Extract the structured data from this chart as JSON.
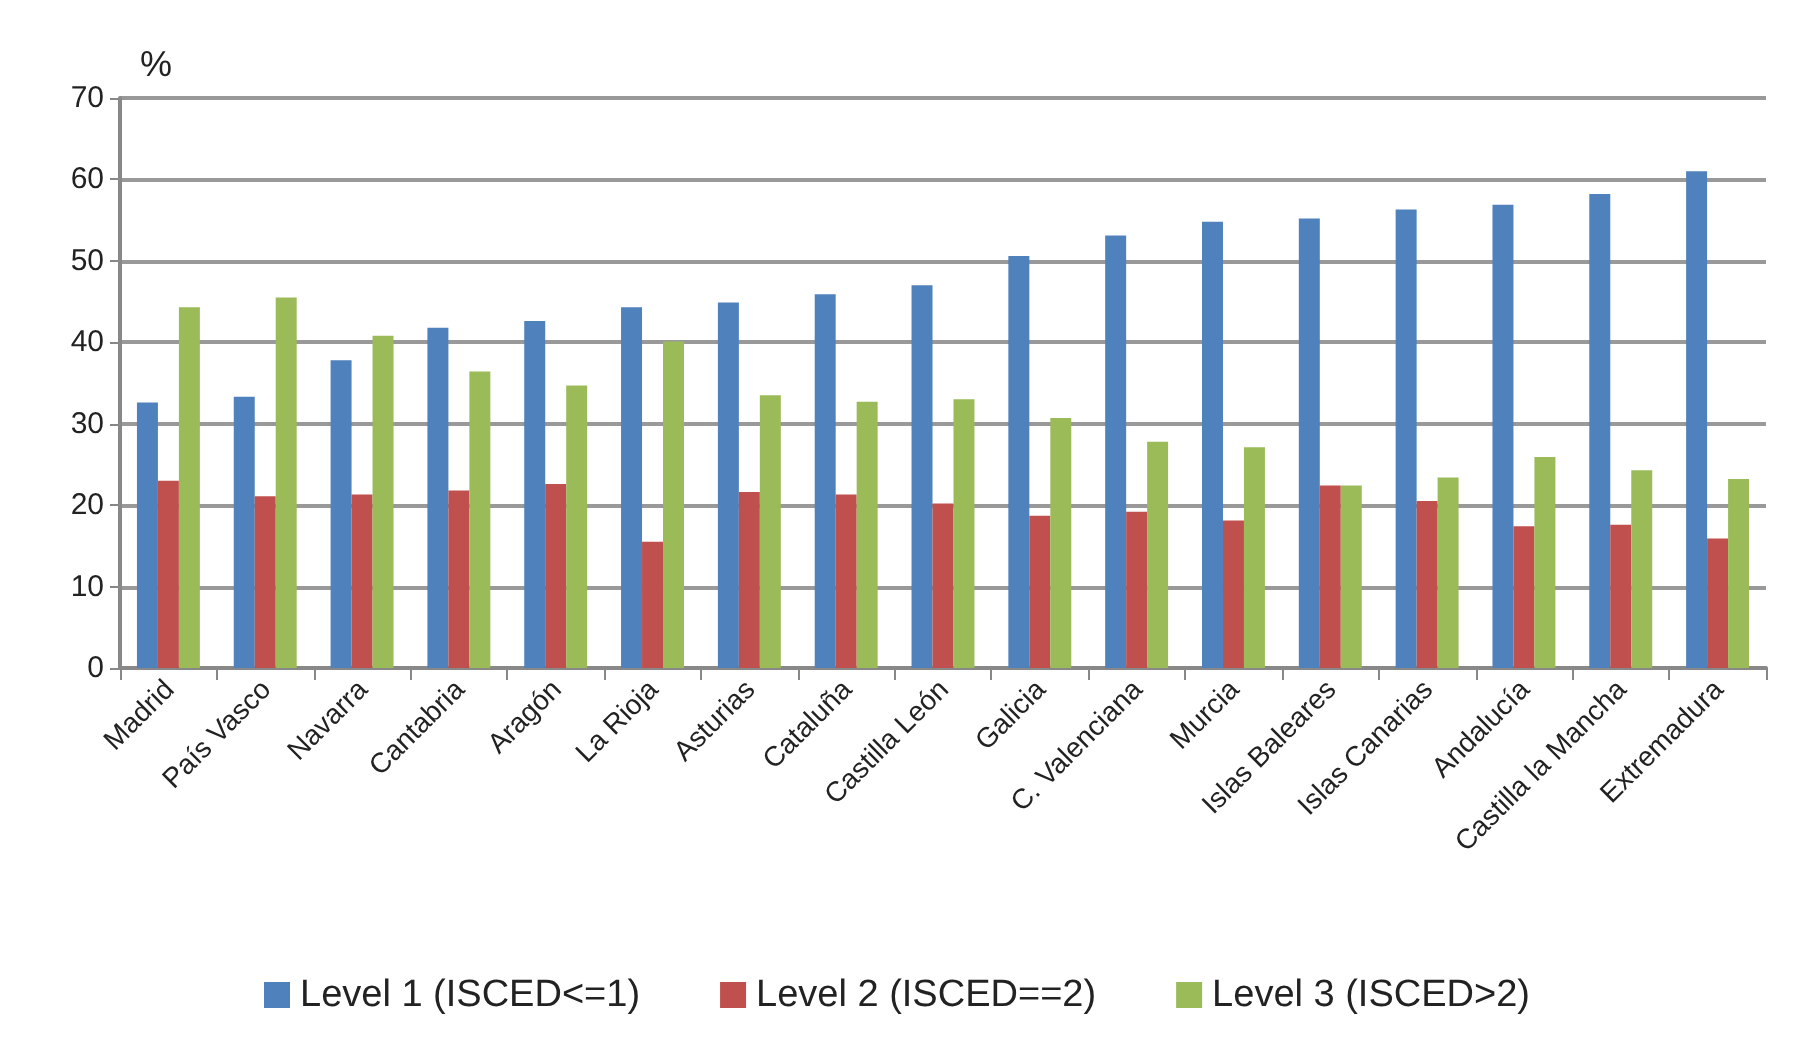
{
  "chart_data": {
    "type": "bar",
    "ylabel": "%",
    "categories": [
      "Madrid",
      "País Vasco",
      "Navarra",
      "Cantabria",
      "Aragón",
      "La Rioja",
      "Asturias",
      "Cataluña",
      "Castilla León",
      "Galicia",
      "C. Valenciana",
      "Murcia",
      "Islas Baleares",
      "Islas Canarias",
      "Andalucía",
      "Castilla la Mancha",
      "Extremadura"
    ],
    "series": [
      {
        "name": "Level 1 (ISCED<=1)",
        "color": "#4f81bd",
        "values": [
          32.6,
          33.3,
          37.8,
          41.8,
          42.6,
          44.3,
          44.9,
          45.9,
          47.0,
          50.6,
          53.1,
          54.8,
          55.2,
          56.3,
          56.9,
          58.2,
          61.0
        ]
      },
      {
        "name": "Level 2 (ISCED==2)",
        "color": "#c0504d",
        "values": [
          23.0,
          21.1,
          21.3,
          21.8,
          22.6,
          15.5,
          21.6,
          21.3,
          20.2,
          18.7,
          19.2,
          18.1,
          22.4,
          20.5,
          17.4,
          17.6,
          15.9
        ]
      },
      {
        "name": "Level 3 (ISCED>2)",
        "color": "#9bbb59",
        "values": [
          44.3,
          45.5,
          40.8,
          36.4,
          34.7,
          40.1,
          33.5,
          32.7,
          33.0,
          30.7,
          27.8,
          27.1,
          22.4,
          23.4,
          25.9,
          24.3,
          23.2
        ]
      }
    ],
    "ylim": [
      0,
      70
    ],
    "yticks": [
      0,
      10,
      20,
      30,
      40,
      50,
      60,
      70
    ],
    "grid": "y",
    "legend": "bottom"
  }
}
